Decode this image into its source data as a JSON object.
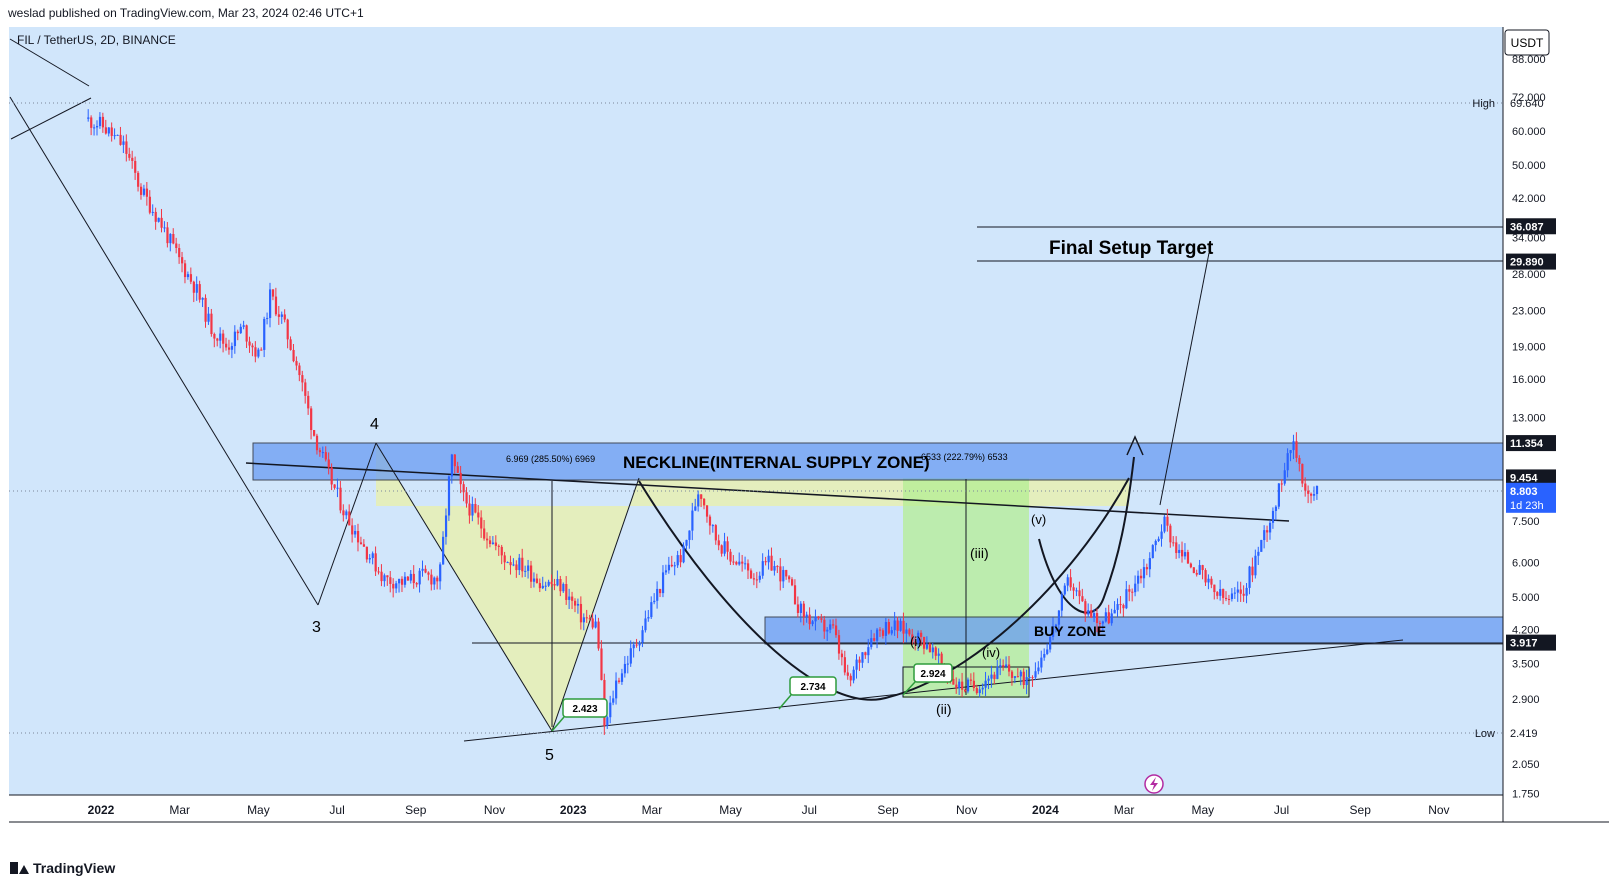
{
  "header": {
    "published_by": "weslad published on TradingView.com, Mar 23, 2024 02:46 UTC+1"
  },
  "symbol": {
    "label": "FIL / TetherUS, 2D, BINANCE"
  },
  "currency_button": "USDT",
  "footer": {
    "brand": "TradingView"
  },
  "colors": {
    "background": "#d1e6fb",
    "up": "#2962ff",
    "down": "#f23645",
    "supply_zone": "#6a9cf2",
    "buy_zone": "#6a9cf2",
    "triangle_fill": "#e8efb2",
    "green_zone": "#b4ee94",
    "marker_green": "#2e9c3c",
    "price_badge": "#2962ff"
  },
  "chart_data": {
    "type": "candlestick",
    "scale": "log",
    "x": [
      "2022",
      "Mar",
      "May",
      "Jul",
      "Sep",
      "Nov",
      "2023",
      "Mar",
      "May",
      "Jul",
      "Sep",
      "Nov",
      "2024",
      "Mar",
      "May",
      "Jul",
      "Sep",
      "Nov"
    ],
    "y_ticks": [
      "88.000",
      "72.000",
      "60.000",
      "50.000",
      "42.000",
      "34.000",
      "28.000",
      "23.000",
      "19.000",
      "16.000",
      "13.000",
      "7.500",
      "6.000",
      "5.000",
      "4.200",
      "3.500",
      "2.900",
      "2.050",
      "1.750"
    ],
    "price_path": [
      [
        -0.2,
        64
      ],
      [
        0.0,
        62
      ],
      [
        0.3,
        55
      ],
      [
        0.5,
        44
      ],
      [
        0.75,
        37
      ],
      [
        1.0,
        30
      ],
      [
        1.2,
        26
      ],
      [
        1.4,
        21
      ],
      [
        1.6,
        19
      ],
      [
        1.8,
        21
      ],
      [
        2.0,
        18
      ],
      [
        2.15,
        25
      ],
      [
        2.3,
        22
      ],
      [
        2.5,
        17
      ],
      [
        2.7,
        12
      ],
      [
        2.9,
        9.5
      ],
      [
        3.1,
        7.8
      ],
      [
        3.35,
        6.5
      ],
      [
        3.6,
        5.5
      ],
      [
        3.85,
        5.4
      ],
      [
        4.1,
        5.6
      ],
      [
        4.3,
        5.5
      ],
      [
        4.45,
        10.5
      ],
      [
        4.6,
        8.5
      ],
      [
        4.85,
        7.2
      ],
      [
        5.1,
        6.2
      ],
      [
        5.35,
        5.9
      ],
      [
        5.6,
        5.4
      ],
      [
        5.85,
        5.3
      ],
      [
        6.1,
        4.5
      ],
      [
        6.3,
        4.3
      ],
      [
        6.4,
        2.45
      ],
      [
        6.55,
        3.2
      ],
      [
        6.8,
        3.9
      ],
      [
        7.0,
        4.8
      ],
      [
        7.2,
        5.8
      ],
      [
        7.4,
        6.3
      ],
      [
        7.6,
        9.0
      ],
      [
        7.8,
        6.9
      ],
      [
        8.0,
        6.2
      ],
      [
        8.3,
        5.6
      ],
      [
        8.5,
        6.0
      ],
      [
        8.7,
        5.5
      ],
      [
        8.9,
        4.6
      ],
      [
        9.1,
        4.3
      ],
      [
        9.3,
        4.2
      ],
      [
        9.5,
        3.1
      ],
      [
        9.6,
        3.5
      ],
      [
        9.8,
        4.1
      ],
      [
        10.0,
        4.3
      ],
      [
        10.2,
        4.2
      ],
      [
        10.5,
        3.9
      ],
      [
        10.7,
        3.4
      ],
      [
        10.9,
        3.1
      ],
      [
        11.1,
        3.1
      ],
      [
        11.3,
        3.3
      ],
      [
        11.5,
        3.4
      ],
      [
        11.7,
        3.2
      ],
      [
        11.9,
        3.5
      ],
      [
        12.1,
        4.2
      ],
      [
        12.3,
        5.5
      ],
      [
        12.5,
        4.7
      ],
      [
        12.7,
        4.4
      ],
      [
        12.9,
        4.6
      ],
      [
        13.1,
        5.3
      ],
      [
        13.3,
        6.0
      ],
      [
        13.5,
        7.5
      ],
      [
        13.7,
        6.3
      ],
      [
        13.9,
        5.9
      ],
      [
        14.1,
        5.2
      ],
      [
        14.3,
        4.9
      ],
      [
        14.5,
        5.1
      ],
      [
        14.65,
        6.0
      ],
      [
        14.8,
        7.2
      ],
      [
        14.95,
        8.5
      ],
      [
        15.1,
        11.5
      ],
      [
        15.2,
        10.6
      ],
      [
        15.3,
        9.0
      ],
      [
        15.35,
        8.4
      ],
      [
        15.45,
        8.8
      ]
    ],
    "price_levels": [
      {
        "label": "High",
        "value": "69.640"
      },
      {
        "label": "",
        "value": "36.087"
      },
      {
        "label": "",
        "value": "29.890"
      },
      {
        "label": "",
        "value": "11.354"
      },
      {
        "label": "",
        "value": "9.454"
      },
      {
        "label": "",
        "value": "8.803",
        "countdown": "1d 23h",
        "current": true
      },
      {
        "label": "",
        "value": "3.917"
      },
      {
        "label": "Low",
        "value": "2.419"
      }
    ],
    "annotations": {
      "final_target": "Final Setup Target",
      "neckline": "NECKLINE(INTERNAL SUPPLY ZONE)",
      "buy_zone": "BUY ZONE",
      "measure_1": "6.969 (285.50%) 6969",
      "measure_2": "6533 (222.79%) 6533",
      "wave_3": "3",
      "wave_4": "4",
      "wave_5": "5",
      "wave_i": "(i)",
      "wave_ii": "(ii)",
      "wave_iii": "(iii)",
      "wave_iv": "(iv)",
      "wave_v": "(v)",
      "callout_1": "2.423",
      "callout_2": "2.734",
      "callout_3": "2.924"
    }
  }
}
